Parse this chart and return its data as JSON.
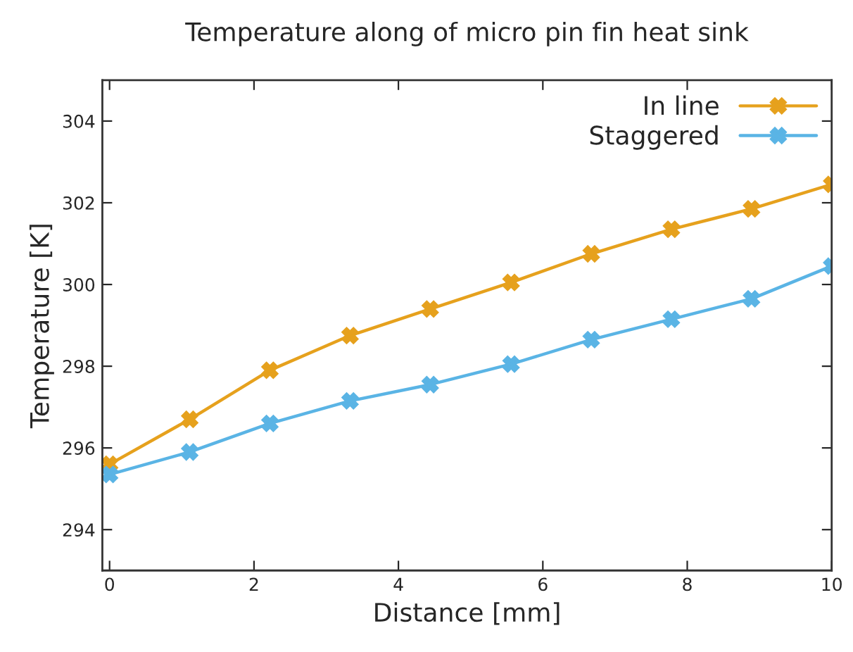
{
  "chart_data": {
    "type": "line",
    "title": "Temperature along of micro pin fin heat sink",
    "xlabel": "Distance [mm]",
    "ylabel": "Temperature [K]",
    "x": [
      0,
      1.11,
      2.22,
      3.33,
      4.44,
      5.56,
      6.67,
      7.78,
      8.89,
      10
    ],
    "series": [
      {
        "name": "In line",
        "color": "#e6a11d",
        "values": [
          295.6,
          296.7,
          297.9,
          298.75,
          299.4,
          300.05,
          300.75,
          301.35,
          301.85,
          302.45
        ]
      },
      {
        "name": "Staggered",
        "color": "#5ab4e5",
        "values": [
          295.35,
          295.9,
          296.6,
          297.15,
          297.55,
          298.05,
          298.65,
          299.15,
          299.65,
          300.45
        ]
      }
    ],
    "xlim": [
      -0.1,
      10
    ],
    "ylim": [
      293,
      305
    ],
    "xticks": [
      0,
      2,
      4,
      6,
      8,
      10
    ],
    "yticks": [
      294,
      296,
      298,
      300,
      302,
      304
    ],
    "legend": "top right",
    "marker": "cross",
    "line_style": "solid",
    "grid": false
  }
}
